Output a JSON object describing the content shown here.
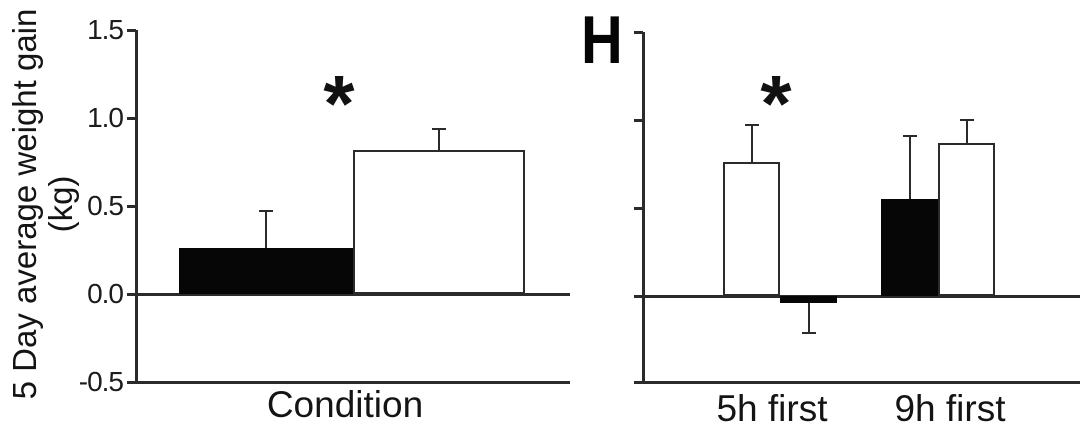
{
  "figure": {
    "panel_label": "H",
    "background": "#ffffff",
    "line_color": "#2b2b2b",
    "bar_fill_filled": "#000000",
    "bar_fill_open": "#ffffff"
  },
  "chart_data": [
    {
      "type": "bar",
      "panel": "left",
      "title": "",
      "ylabel": "5 Day average weight gain",
      "ylabel_unit": "(kg)",
      "xlabel": "Condition",
      "ylim": [
        -0.5,
        1.5
      ],
      "yticks": [
        1.5,
        1.0,
        0.5,
        0.0,
        -0.5
      ],
      "yticklabels": [
        "1.5",
        "1.0",
        "0.5",
        "0.0",
        "-0.5"
      ],
      "grid": false,
      "legend": "none",
      "categories": [
        "Condition"
      ],
      "series": [
        {
          "name": "filled-black-bar",
          "fill": "#000000",
          "values": [
            0.26
          ],
          "errors": [
            0.21
          ]
        },
        {
          "name": "open-white-bar",
          "fill": "#ffffff",
          "values": [
            0.82
          ],
          "errors": [
            0.12
          ]
        }
      ],
      "annotations": [
        {
          "text": "*",
          "meaning": "significant-difference"
        }
      ]
    },
    {
      "type": "bar",
      "panel": "right",
      "panel_label": "H",
      "title": "",
      "ylabel": "",
      "xlabel": "",
      "ylim": [
        -0.5,
        1.5
      ],
      "yticks": [
        1.5,
        1.0,
        0.5,
        0.0,
        -0.5
      ],
      "yticklabels": [],
      "grid": false,
      "legend": "none",
      "categories": [
        "5h first",
        "9h first"
      ],
      "series": [
        {
          "name": "open-white-bar",
          "fill": "#ffffff",
          "values": [
            0.76,
            0.87
          ],
          "errors": [
            0.21,
            0.13
          ]
        },
        {
          "name": "filled-black-bar",
          "fill": "#000000",
          "values": [
            -0.04,
            0.55
          ],
          "errors": [
            0.17,
            0.36
          ]
        }
      ],
      "annotations": [
        {
          "text": "*",
          "meaning": "significant-difference"
        }
      ]
    }
  ]
}
